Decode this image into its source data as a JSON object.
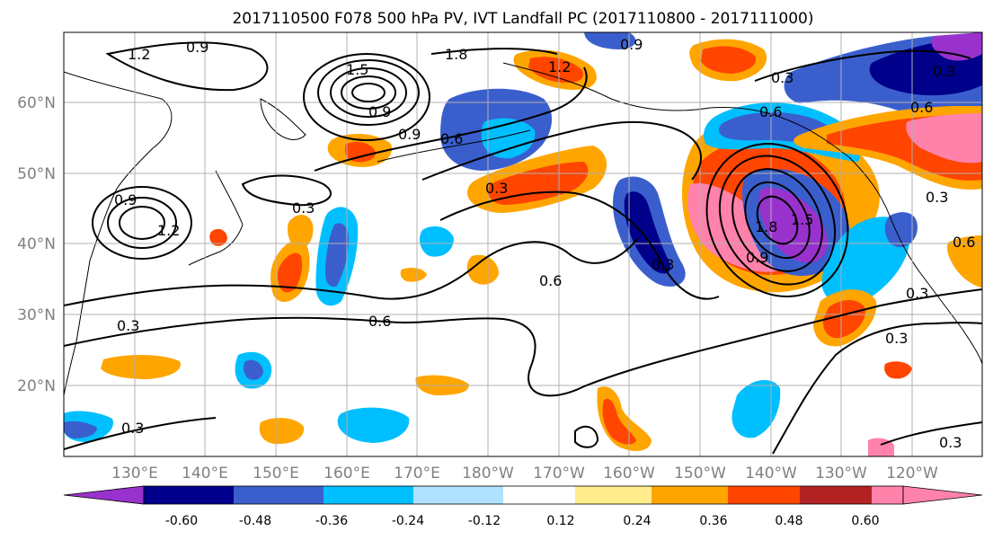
{
  "figure": {
    "title": "2017110500 F078 500 hPa PV, IVT Landfall PC (2017110800 - 2017111000)"
  },
  "map": {
    "lat_labels": [
      "60°N",
      "50°N",
      "40°N",
      "30°N",
      "20°N"
    ],
    "lon_labels": [
      "130°E",
      "140°E",
      "150°E",
      "160°E",
      "170°E",
      "180°W",
      "170°W",
      "160°W",
      "150°W",
      "140°W",
      "130°W",
      "120°W"
    ],
    "contour_labels": [
      "1.2",
      "0.9",
      "1.5",
      "1.8",
      "0.9",
      "1.2",
      "0.9",
      "0.6",
      "0.3",
      "0.3",
      "0.3",
      "0.9",
      "1.2",
      "0.3",
      "0.6",
      "0.3",
      "0.6",
      "0.6",
      "1.8",
      "1.5",
      "0.9",
      "0.3",
      "0.3",
      "0.3",
      "0.6",
      "0.3",
      "0.6",
      "0.3",
      "0.3",
      "0.9"
    ]
  },
  "colorbar": {
    "colors": [
      "#9932cc",
      "#00008b",
      "#3a5fcd",
      "#00bfff",
      "#b0e2ff",
      "#ffffff",
      "#ffec8b",
      "#ffa500",
      "#ff4500",
      "#b22222",
      "#ff82ab"
    ],
    "tick_labels": [
      "-0.60",
      "-0.48",
      "-0.36",
      "-0.24",
      "-0.12",
      "0.12",
      "0.24",
      "0.36",
      "0.48",
      "0.60"
    ]
  }
}
